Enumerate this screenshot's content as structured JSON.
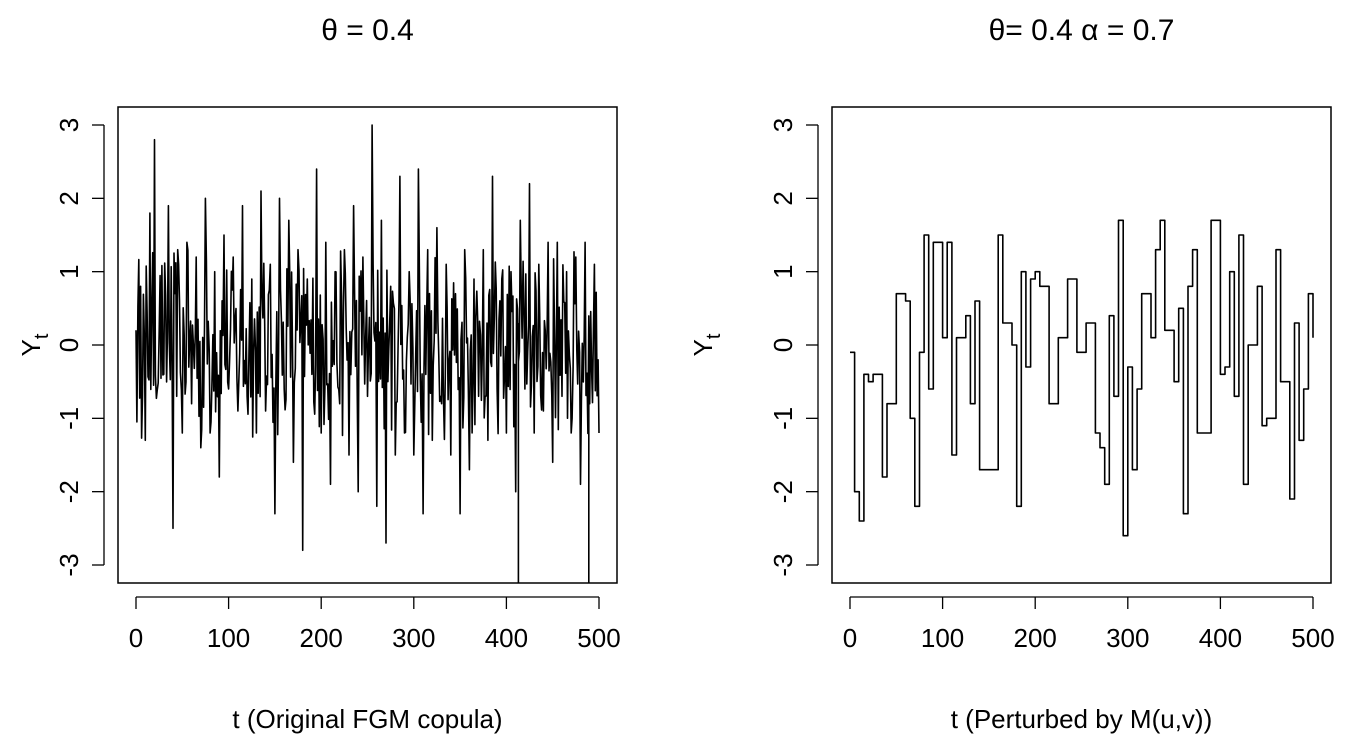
{
  "chart_data": [
    {
      "type": "line",
      "title": "θ = 0.4",
      "xlabel": "t (Original FGM copula)",
      "ylabel": "Y",
      "ylabel_sub": "t",
      "xlim": [
        0,
        500
      ],
      "ylim": [
        -3,
        3
      ],
      "xticks": [
        0,
        100,
        200,
        300,
        400,
        500
      ],
      "yticks": [
        -3,
        -2,
        -1,
        0,
        1,
        2,
        3
      ],
      "grid": false,
      "style": "noisy",
      "series": [
        {
          "x": [
            0,
            5,
            10,
            15,
            20,
            25,
            30,
            35,
            40,
            45,
            50,
            55,
            60,
            65,
            70,
            75,
            80,
            85,
            90,
            95,
            100,
            105,
            110,
            115,
            120,
            125,
            130,
            135,
            140,
            145,
            150,
            155,
            160,
            165,
            170,
            175,
            180,
            185,
            190,
            195,
            200,
            205,
            210,
            215,
            220,
            225,
            230,
            235,
            240,
            245,
            250,
            255,
            260,
            265,
            270,
            275,
            280,
            285,
            290,
            295,
            300,
            305,
            310,
            315,
            320,
            325,
            330,
            335,
            340,
            345,
            350,
            355,
            360,
            365,
            370,
            375,
            380,
            385,
            390,
            395,
            400,
            405,
            410,
            415,
            420,
            425,
            430,
            435,
            440,
            445,
            450,
            455,
            460,
            465,
            470,
            475,
            480,
            485,
            490,
            495,
            500
          ],
          "y": [
            0.2,
            0.8,
            -1.3,
            1.8,
            2.8,
            0.2,
            -0.4,
            1.9,
            -2.5,
            1.3,
            -1.2,
            1.4,
            -0.8,
            1.2,
            -1.4,
            2.0,
            -1.2,
            1.0,
            -1.8,
            1.5,
            -0.6,
            1.2,
            -0.9,
            1.9,
            -0.7,
            0.9,
            -1.2,
            2.1,
            -0.9,
            1.1,
            -2.3,
            2.0,
            -0.6,
            1.7,
            -1.6,
            1.3,
            -2.8,
            0.9,
            -0.4,
            2.4,
            -1.2,
            1.4,
            -1.9,
            1.0,
            -0.8,
            1.3,
            -1.5,
            1.9,
            -2.0,
            1.2,
            -0.7,
            3.0,
            -2.2,
            1.7,
            -2.7,
            0.8,
            -1.5,
            2.3,
            -1.2,
            1.0,
            -1.5,
            2.4,
            -2.3,
            1.3,
            -1.3,
            1.6,
            -0.8,
            1.1,
            -1.5,
            0.7,
            -2.3,
            1.3,
            -1.7,
            0.9,
            -0.7,
            1.3,
            -1.3,
            2.3,
            -0.6,
            0.9,
            -1.2,
            1.0,
            -2.0,
            1.7,
            -0.6,
            2.2,
            -1.2,
            1.1,
            -0.9,
            1.4,
            -1.6,
            1.4,
            -0.7,
            1.0,
            -1.2,
            1.2,
            -1.9,
            1.4,
            -0.8,
            1.1,
            -1.2
          ]
        }
      ]
    },
    {
      "type": "line",
      "title": "θ= 0.4  α = 0.7",
      "xlabel": "t (Perturbed by M(u,v))",
      "ylabel": "Y",
      "ylabel_sub": "t",
      "xlim": [
        0,
        500
      ],
      "ylim": [
        -3,
        3
      ],
      "xticks": [
        0,
        100,
        200,
        300,
        400,
        500
      ],
      "yticks": [
        -3,
        -2,
        -1,
        0,
        1,
        2,
        3
      ],
      "grid": false,
      "style": "step",
      "series": [
        {
          "x": [
            0,
            5,
            10,
            15,
            20,
            25,
            30,
            35,
            40,
            45,
            50,
            55,
            60,
            65,
            70,
            75,
            80,
            85,
            90,
            95,
            100,
            105,
            110,
            115,
            120,
            125,
            130,
            135,
            140,
            145,
            150,
            155,
            160,
            165,
            170,
            175,
            180,
            185,
            190,
            195,
            200,
            205,
            210,
            215,
            220,
            225,
            230,
            235,
            240,
            245,
            250,
            255,
            260,
            265,
            270,
            275,
            280,
            285,
            290,
            295,
            300,
            305,
            310,
            315,
            320,
            325,
            330,
            335,
            340,
            345,
            350,
            355,
            360,
            365,
            370,
            375,
            380,
            385,
            390,
            395,
            400,
            405,
            410,
            415,
            420,
            425,
            430,
            435,
            440,
            445,
            450,
            455,
            460,
            465,
            470,
            475,
            480,
            485,
            490,
            495,
            500
          ],
          "y": [
            -0.1,
            -2.0,
            -2.4,
            -0.4,
            -0.5,
            -0.4,
            -0.4,
            -1.8,
            -0.8,
            -0.8,
            0.7,
            0.7,
            0.6,
            -1.0,
            -2.2,
            -0.1,
            1.5,
            -0.6,
            1.4,
            1.4,
            0.1,
            1.4,
            -1.5,
            0.1,
            0.1,
            0.4,
            -0.8,
            0.6,
            -1.7,
            -1.7,
            -1.7,
            -1.7,
            1.5,
            0.3,
            0.3,
            0.0,
            -2.2,
            1.0,
            -0.3,
            0.9,
            1.0,
            0.8,
            0.8,
            -0.8,
            -0.8,
            0.1,
            0.1,
            0.9,
            0.9,
            -0.1,
            -0.1,
            0.3,
            0.3,
            -1.2,
            -1.4,
            -1.9,
            0.4,
            -0.7,
            1.7,
            -2.6,
            -0.3,
            -1.7,
            -0.6,
            0.7,
            0.7,
            0.1,
            1.3,
            1.7,
            0.2,
            0.2,
            -0.5,
            0.5,
            -2.3,
            0.8,
            1.3,
            -1.2,
            -1.2,
            -1.2,
            1.7,
            1.7,
            -0.4,
            -0.3,
            1.0,
            -0.7,
            1.5,
            -1.9,
            0.0,
            0.0,
            0.8,
            -1.1,
            -1.0,
            -1.0,
            1.3,
            -0.5,
            -0.5,
            -2.1,
            0.3,
            -1.3,
            -0.6,
            0.7,
            0.1
          ]
        }
      ]
    }
  ]
}
